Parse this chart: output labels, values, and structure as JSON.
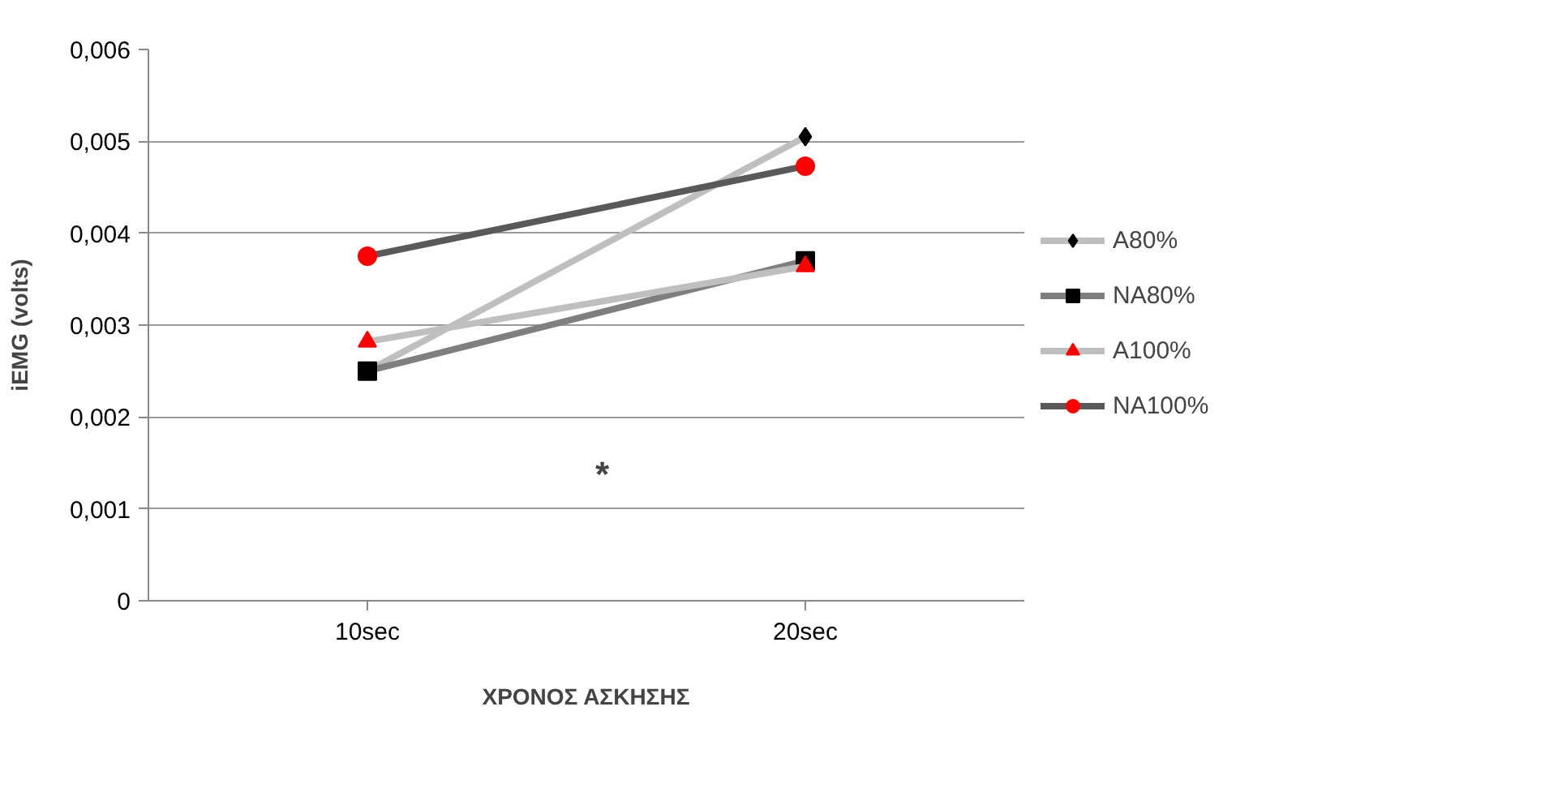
{
  "chart_data": {
    "type": "line",
    "categories": [
      "10sec",
      "20sec"
    ],
    "xlabel": "ΧΡΟΝΟΣ ΑΣΚΗΣΗΣ",
    "ylabel": "iEMG (volts)",
    "series": [
      {
        "name": "A80%",
        "color": "#bfbfbf",
        "colors": [
          "#000000",
          "#000000"
        ],
        "marker": "diamond",
        "values": [
          0.0025,
          0.00505
        ]
      },
      {
        "name": "NA80%",
        "color": "#7f7f7f",
        "colors": [
          "#000000",
          "#000000"
        ],
        "marker": "square",
        "values": [
          0.0025,
          0.0037
        ]
      },
      {
        "name": "A100%",
        "color": "#bfbfbf",
        "colors": [
          "#ff0000",
          "#ff0000"
        ],
        "marker": "triangle",
        "values": [
          0.00282,
          0.00364
        ]
      },
      {
        "name": "NA100%",
        "color": "#595959",
        "colors": [
          "#ff0000",
          "#ff0000"
        ],
        "marker": "circle",
        "values": [
          0.00375,
          0.00473
        ]
      }
    ],
    "ylim": [
      0,
      0.006
    ],
    "yticks": [
      {
        "value": 0,
        "label": "0"
      },
      {
        "value": 0.001,
        "label": "0,001"
      },
      {
        "value": 0.002,
        "label": "0,002"
      },
      {
        "value": 0.003,
        "label": "0,003"
      },
      {
        "value": 0.004,
        "label": "0,004"
      },
      {
        "value": 0.005,
        "label": "0,005"
      },
      {
        "value": 0.006,
        "label": "0,006"
      }
    ],
    "grid": "y",
    "legend": "right",
    "line_style": "solid",
    "annotations": [
      "*"
    ]
  }
}
